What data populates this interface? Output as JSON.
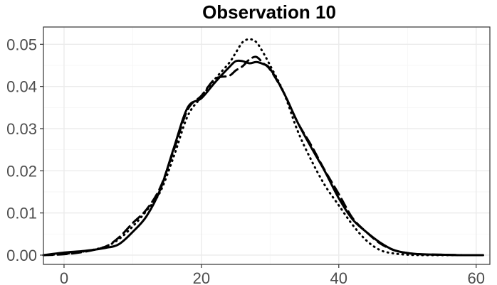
{
  "chart_data": {
    "type": "line",
    "title": "Observation 10",
    "xlabel": "",
    "ylabel": "",
    "xlim": [
      -3,
      62
    ],
    "ylim": [
      -0.0022,
      0.0541
    ],
    "x_ticks": [
      0,
      20,
      40,
      60
    ],
    "y_ticks": [
      0.0,
      0.01,
      0.02,
      0.03,
      0.04,
      0.05
    ],
    "x_tick_labels": [
      "0",
      "20",
      "40",
      "60"
    ],
    "y_tick_labels": [
      "0.00",
      "0.01",
      "0.02",
      "0.03",
      "0.04",
      "0.05"
    ],
    "grid": true,
    "legend": "none",
    "series": [
      {
        "line_style": "solid",
        "x": [
          -3,
          0,
          3,
          6,
          8,
          10,
          12,
          14,
          16,
          18,
          20,
          22,
          24,
          25,
          26,
          27,
          28,
          29,
          30,
          32,
          34,
          36,
          38,
          40,
          42,
          44,
          46,
          48,
          50,
          52,
          55,
          58,
          61
        ],
        "y": [
          0.0,
          0.0006,
          0.001,
          0.0017,
          0.0026,
          0.0055,
          0.0092,
          0.0155,
          0.0255,
          0.035,
          0.0372,
          0.041,
          0.0445,
          0.046,
          0.046,
          0.0455,
          0.0458,
          0.0453,
          0.0442,
          0.0385,
          0.0315,
          0.0255,
          0.0198,
          0.0135,
          0.0085,
          0.0055,
          0.003,
          0.0012,
          0.0005,
          0.0002,
          0.0001,
          0.0,
          0.0
        ]
      },
      {
        "line_style": "dashed",
        "x": [
          -3,
          0,
          3,
          6,
          8,
          10,
          12,
          14,
          16,
          18,
          20,
          22,
          24,
          25,
          26,
          27,
          28,
          29,
          30,
          32,
          34,
          36,
          38,
          40,
          42,
          44,
          46,
          48,
          50,
          52,
          55,
          58,
          61
        ],
        "y": [
          0.0,
          0.0002,
          0.0008,
          0.002,
          0.0042,
          0.0076,
          0.0108,
          0.016,
          0.025,
          0.0345,
          0.0378,
          0.0418,
          0.0425,
          0.0438,
          0.0448,
          0.0464,
          0.047,
          0.0455,
          0.044,
          0.0385,
          0.0315,
          0.026,
          0.02,
          0.0145,
          0.0088,
          0.0055,
          0.0028,
          0.0012,
          0.0005,
          0.0002,
          0.0001,
          0.0,
          0.0
        ]
      },
      {
        "line_style": "dotted",
        "x": [
          -3,
          0,
          3,
          6,
          8,
          10,
          12,
          14,
          16,
          18,
          20,
          22,
          24,
          25,
          26,
          27,
          28,
          29,
          30,
          32,
          34,
          36,
          38,
          40,
          42,
          44,
          46,
          48,
          50,
          52,
          55,
          58,
          61
        ],
        "y": [
          0.0,
          0.0003,
          0.0009,
          0.002,
          0.0038,
          0.0068,
          0.0105,
          0.015,
          0.0235,
          0.033,
          0.0375,
          0.0418,
          0.0455,
          0.048,
          0.0505,
          0.0512,
          0.0505,
          0.048,
          0.045,
          0.0385,
          0.0295,
          0.0225,
          0.0165,
          0.0118,
          0.0072,
          0.0035,
          0.0012,
          0.0004,
          0.0001,
          0.0,
          0.0,
          0.0,
          0.0
        ]
      }
    ]
  }
}
